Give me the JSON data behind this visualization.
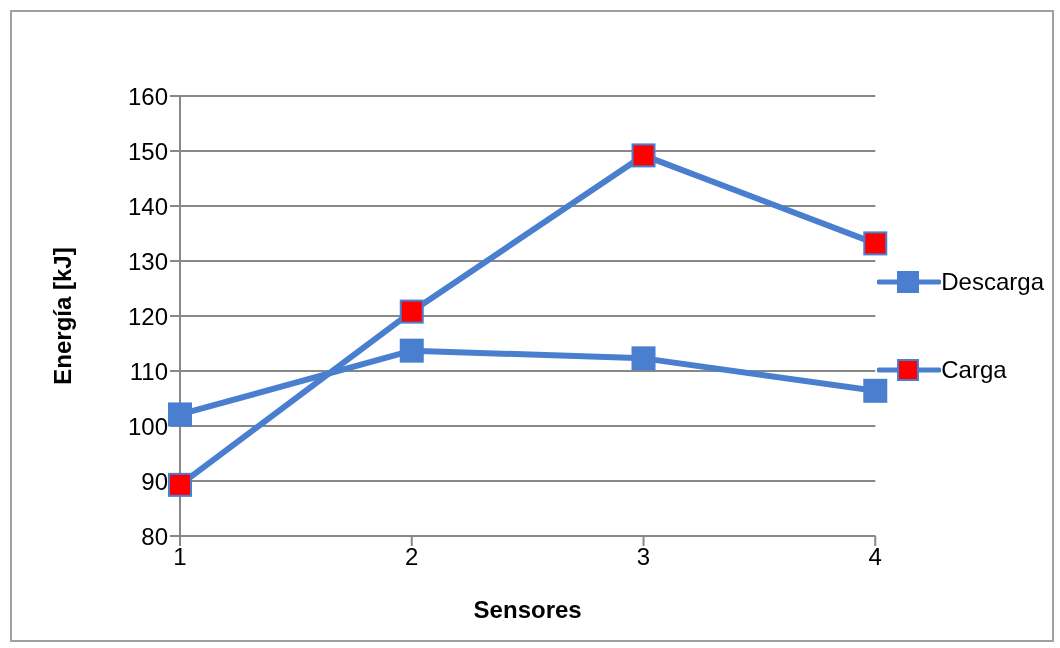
{
  "chart_data": {
    "type": "line",
    "xlabel": "Sensores",
    "ylabel": "Energía [kJ]",
    "categories": [
      "1",
      "2",
      "3",
      "4"
    ],
    "series": [
      {
        "name": "Descarga",
        "color": "#4a7ecf",
        "values": [
          102.1,
          113.7,
          112.3,
          106.4
        ]
      },
      {
        "name": "Carga",
        "color": "#4a7ecf",
        "colors": [
          "#ff0000",
          "#ff0000",
          "#ff0000",
          "#ff0000"
        ],
        "values": [
          89.3,
          120.8,
          149.2,
          133.2
        ]
      }
    ],
    "ylim": [
      80,
      160
    ],
    "yticks": [
      80,
      90,
      100,
      110,
      120,
      130,
      140,
      150,
      160
    ],
    "grid": "y",
    "legend": "right",
    "marker": "square",
    "line_style": "solid"
  }
}
